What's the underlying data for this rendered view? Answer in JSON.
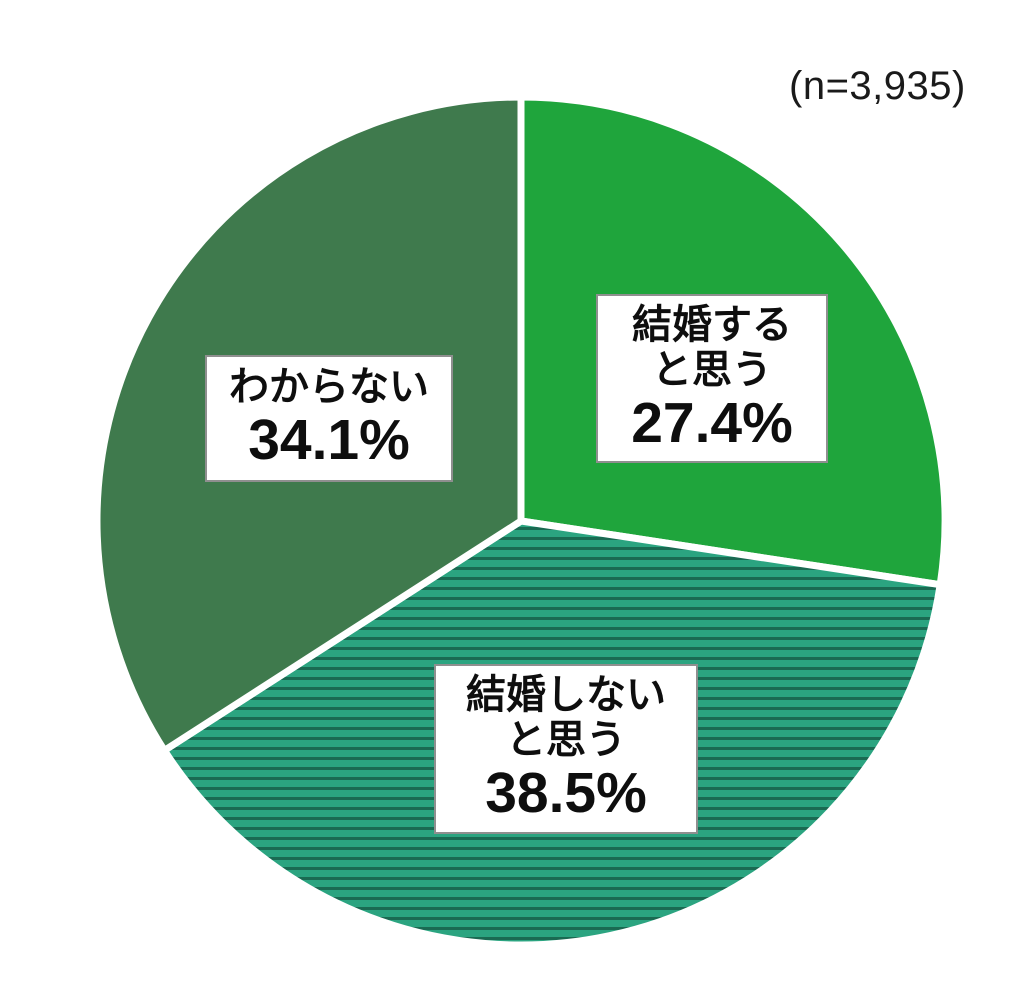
{
  "sample_size_label": "(n=3,935)",
  "chart_data": {
    "type": "pie",
    "title": "",
    "sample_size": 3935,
    "start_angle_deg": 0,
    "direction": "clockwise",
    "background": "#ffffff",
    "divider_color": "#ffffff",
    "label_box": {
      "fill": "#ffffff",
      "border_color": "#8f8f8f",
      "text_color": "#0e0e0e"
    },
    "slices": [
      {
        "label": "結婚すると思う",
        "label_lines": [
          "結婚する",
          "と思う"
        ],
        "value": 27.4,
        "pct_label": "27.4%",
        "color": "#1fa53c",
        "pattern": "solid"
      },
      {
        "label": "結婚しないと思う",
        "label_lines": [
          "結婚しない",
          "と思う"
        ],
        "value": 38.5,
        "pct_label": "38.5%",
        "color": "#2ba480",
        "pattern": "horizontal-stripes",
        "stripe_color": "#1a6a52"
      },
      {
        "label": "わからない",
        "label_lines": [
          "わからない"
        ],
        "value": 34.1,
        "pct_label": "34.1%",
        "color": "#3f7a4d",
        "pattern": "solid"
      }
    ]
  }
}
